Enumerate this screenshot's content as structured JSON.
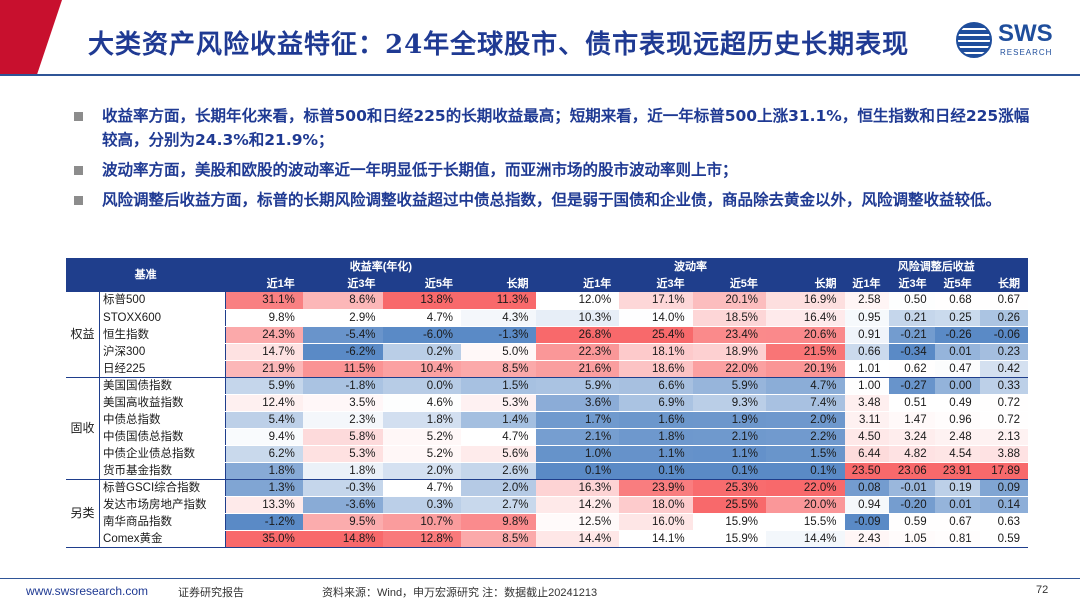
{
  "title": "大类资产风险收益特征：24年全球股市、债市表现远超历史长期表现",
  "logo": {
    "text": "SWS",
    "sub": "RESEARCH"
  },
  "bullets": [
    "收益率方面，长期年化来看，标普500和日经225的长期收益最高；短期来看，近一年标普500上涨31.1%，恒生指数和日经225涨幅较高，分别为24.3%和21.9%；",
    "波动率方面，美股和欧股的波动率近一年明显低于长期值，而亚洲市场的股市波动率则上市；",
    "风险调整后收益方面，标普的长期风险调整收益超过中债总指数，但是弱于国债和企业债，商品除去黄金以外，风险调整收益较低。"
  ],
  "table": {
    "header_base": "基准",
    "group_headers": [
      "收益率(年化)",
      "波动率",
      "风险调整后收益"
    ],
    "period_headers": [
      "近1年",
      "近3年",
      "近5年",
      "长期"
    ],
    "groups": [
      {
        "label": "权益",
        "rows": [
          {
            "name": "标普500",
            "returns": [
              "31.1%",
              "8.6%",
              "13.8%",
              "11.3%"
            ],
            "vol": [
              "12.0%",
              "17.1%",
              "20.1%",
              "16.9%"
            ],
            "ra": [
              "2.58",
              "0.50",
              "0.68",
              "0.67"
            ]
          },
          {
            "name": "STOXX600",
            "returns": [
              "9.8%",
              "2.9%",
              "4.7%",
              "4.3%"
            ],
            "vol": [
              "10.3%",
              "14.0%",
              "18.5%",
              "16.4%"
            ],
            "ra": [
              "0.95",
              "0.21",
              "0.25",
              "0.26"
            ]
          },
          {
            "name": "恒生指数",
            "returns": [
              "24.3%",
              "-5.4%",
              "-6.0%",
              "-1.3%"
            ],
            "vol": [
              "26.8%",
              "25.4%",
              "23.4%",
              "20.6%"
            ],
            "ra": [
              "0.91",
              "-0.21",
              "-0.26",
              "-0.06"
            ]
          },
          {
            "name": "沪深300",
            "returns": [
              "14.7%",
              "-6.2%",
              "0.2%",
              "5.0%"
            ],
            "vol": [
              "22.3%",
              "18.1%",
              "18.9%",
              "21.5%"
            ],
            "ra": [
              "0.66",
              "-0.34",
              "0.01",
              "0.23"
            ]
          },
          {
            "name": "日经225",
            "returns": [
              "21.9%",
              "11.5%",
              "10.4%",
              "8.5%"
            ],
            "vol": [
              "21.6%",
              "18.6%",
              "22.0%",
              "20.1%"
            ],
            "ra": [
              "1.01",
              "0.62",
              "0.47",
              "0.42"
            ]
          }
        ]
      },
      {
        "label": "固收",
        "rows": [
          {
            "name": "美国国债指数",
            "returns": [
              "5.9%",
              "-1.8%",
              "0.0%",
              "1.5%"
            ],
            "vol": [
              "5.9%",
              "6.6%",
              "5.9%",
              "4.7%"
            ],
            "ra": [
              "1.00",
              "-0.27",
              "0.00",
              "0.33"
            ]
          },
          {
            "name": "美国高收益指数",
            "returns": [
              "12.4%",
              "3.5%",
              "4.6%",
              "5.3%"
            ],
            "vol": [
              "3.6%",
              "6.9%",
              "9.3%",
              "7.4%"
            ],
            "ra": [
              "3.48",
              "0.51",
              "0.49",
              "0.72"
            ]
          },
          {
            "name": "中债总指数",
            "returns": [
              "5.4%",
              "2.3%",
              "1.8%",
              "1.4%"
            ],
            "vol": [
              "1.7%",
              "1.6%",
              "1.9%",
              "2.0%"
            ],
            "ra": [
              "3.11",
              "1.47",
              "0.96",
              "0.72"
            ]
          },
          {
            "name": "中债国债总指数",
            "returns": [
              "9.4%",
              "5.8%",
              "5.2%",
              "4.7%"
            ],
            "vol": [
              "2.1%",
              "1.8%",
              "2.1%",
              "2.2%"
            ],
            "ra": [
              "4.50",
              "3.24",
              "2.48",
              "2.13"
            ]
          },
          {
            "name": "中债企业债总指数",
            "returns": [
              "6.2%",
              "5.3%",
              "5.2%",
              "5.6%"
            ],
            "vol": [
              "1.0%",
              "1.1%",
              "1.1%",
              "1.5%"
            ],
            "ra": [
              "6.44",
              "4.82",
              "4.54",
              "3.88"
            ]
          },
          {
            "name": "货币基金指数",
            "returns": [
              "1.8%",
              "1.8%",
              "2.0%",
              "2.6%"
            ],
            "vol": [
              "0.1%",
              "0.1%",
              "0.1%",
              "0.1%"
            ],
            "ra": [
              "23.50",
              "23.06",
              "23.91",
              "17.89"
            ]
          }
        ]
      },
      {
        "label": "另类",
        "rows": [
          {
            "name": "标普GSCI综合指数",
            "returns": [
              "1.3%",
              "-0.3%",
              "4.7%",
              "2.0%"
            ],
            "vol": [
              "16.3%",
              "23.9%",
              "25.3%",
              "22.0%"
            ],
            "ra": [
              "0.08",
              "-0.01",
              "0.19",
              "0.09"
            ]
          },
          {
            "name": "发达市场房地产指数",
            "returns": [
              "13.3%",
              "-3.6%",
              "0.3%",
              "2.7%"
            ],
            "vol": [
              "14.2%",
              "18.0%",
              "25.5%",
              "20.0%"
            ],
            "ra": [
              "0.94",
              "-0.20",
              "0.01",
              "0.14"
            ]
          },
          {
            "name": "南华商品指数",
            "returns": [
              "-1.2%",
              "9.5%",
              "10.7%",
              "9.8%"
            ],
            "vol": [
              "12.5%",
              "16.0%",
              "15.9%",
              "15.5%"
            ],
            "ra": [
              "-0.09",
              "0.59",
              "0.67",
              "0.63"
            ]
          },
          {
            "name": "Comex黄金",
            "returns": [
              "35.0%",
              "14.8%",
              "12.8%",
              "8.5%"
            ],
            "vol": [
              "14.4%",
              "14.1%",
              "15.9%",
              "14.4%"
            ],
            "ra": [
              "2.43",
              "1.05",
              "0.81",
              "0.59"
            ]
          }
        ]
      }
    ]
  },
  "footer": {
    "url": "www.swsresearch.com",
    "report": "证券研究报告",
    "source": "资料来源：Wind，申万宏源研究  注：数据截止20241213",
    "page": "72"
  },
  "colors": {
    "title": "#1f3a93",
    "accent_red": "#c8102e",
    "header_bg": "#1f3e8c",
    "high": "#f8696b",
    "mid": "#ffffff",
    "low": "#5a8ac6"
  }
}
